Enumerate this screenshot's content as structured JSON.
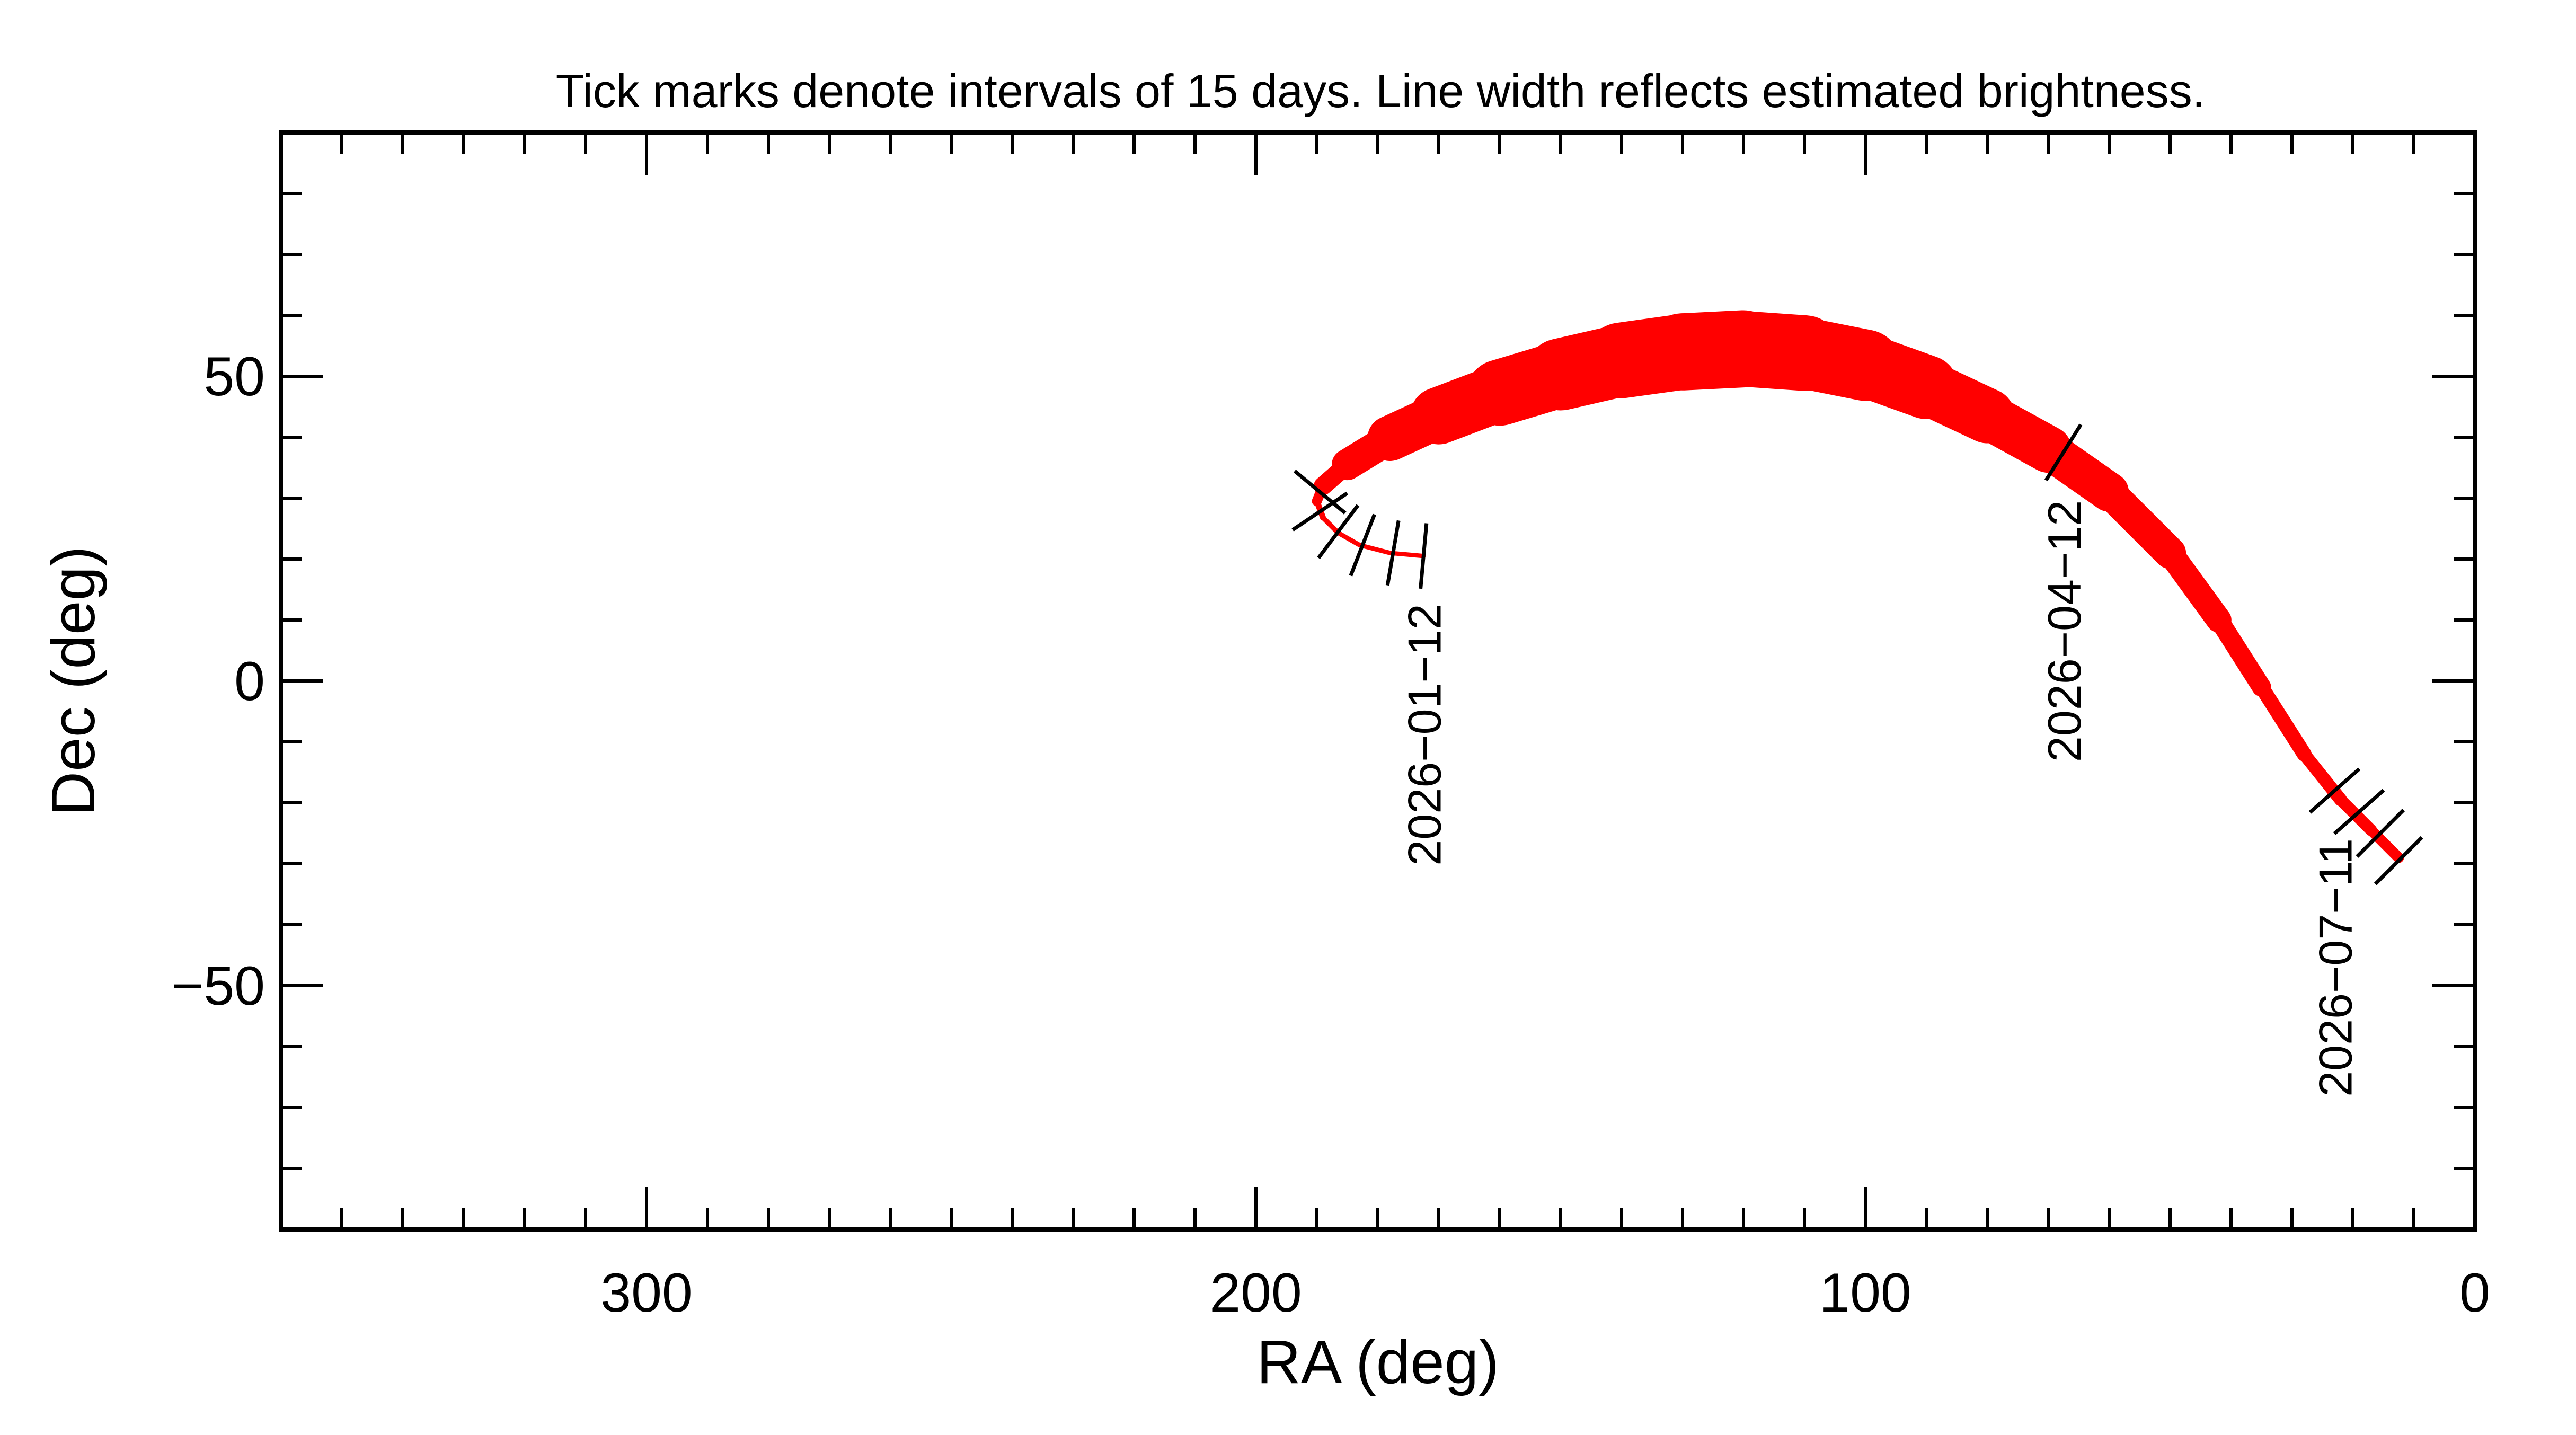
{
  "chart_data": {
    "type": "line",
    "title": "Tick marks denote intervals of 15 days.  Line width reflects estimated brightness.",
    "xlabel": "RA (deg)",
    "ylabel": "Dec (deg)",
    "xlim": [
      360,
      0
    ],
    "ylim": [
      -90,
      90
    ],
    "x_reversed": true,
    "xticks": [
      300,
      200,
      100,
      0
    ],
    "yticks": [
      50,
      0,
      -50
    ],
    "xtick_labels": [
      "300",
      "200",
      "100",
      "0"
    ],
    "ytick_labels": [
      "50",
      "0",
      "−50"
    ],
    "grid": false,
    "line_color": "#ff0000",
    "series": [
      {
        "points": [
          {
            "ra": 172.5,
            "dec": 20.5,
            "w": 0.3
          },
          {
            "ra": 178.0,
            "dec": 21.0,
            "w": 0.3
          },
          {
            "ra": 183.0,
            "dec": 22.3,
            "w": 0.3
          },
          {
            "ra": 186.5,
            "dec": 24.3,
            "w": 0.32
          },
          {
            "ra": 189.0,
            "dec": 26.8,
            "w": 0.35
          },
          {
            "ra": 190.0,
            "dec": 29.5,
            "w": 0.45
          },
          {
            "ra": 189.0,
            "dec": 32.0,
            "w": 0.9
          },
          {
            "ra": 185.0,
            "dec": 35.5,
            "w": 1.6
          },
          {
            "ra": 178.0,
            "dec": 39.8,
            "w": 2.6
          },
          {
            "ra": 170.0,
            "dec": 43.5,
            "w": 3.5
          },
          {
            "ra": 160.0,
            "dec": 47.3,
            "w": 4.2
          },
          {
            "ra": 150.0,
            "dec": 50.3,
            "w": 4.7
          },
          {
            "ra": 140.0,
            "dec": 52.6,
            "w": 5.0
          },
          {
            "ra": 130.0,
            "dec": 54.0,
            "w": 5.2
          },
          {
            "ra": 120.0,
            "dec": 54.5,
            "w": 5.2
          },
          {
            "ra": 110.0,
            "dec": 53.8,
            "w": 5.0
          },
          {
            "ra": 100.0,
            "dec": 51.8,
            "w": 4.6
          },
          {
            "ra": 90.0,
            "dec": 48.2,
            "w": 4.0
          },
          {
            "ra": 80.0,
            "dec": 43.5,
            "w": 3.4
          },
          {
            "ra": 70.0,
            "dec": 38.0,
            "w": 2.9
          },
          {
            "ra": 60.0,
            "dec": 31.0,
            "w": 2.4
          },
          {
            "ra": 50.0,
            "dec": 21.0,
            "w": 1.9
          },
          {
            "ra": 42.0,
            "dec": 10.0,
            "w": 1.5
          },
          {
            "ra": 35.0,
            "dec": -1.0,
            "w": 1.1
          },
          {
            "ra": 28.0,
            "dec": -12.0,
            "w": 0.9
          },
          {
            "ra": 22.0,
            "dec": -19.5,
            "w": 0.85
          },
          {
            "ra": 17.0,
            "dec": -24.5,
            "w": 0.75
          },
          {
            "ra": 12.5,
            "dec": -29.0,
            "w": 0.7
          }
        ]
      }
    ],
    "tick_marks": [
      {
        "ra": 172.5,
        "dec": 20.5
      },
      {
        "ra": 177.5,
        "dec": 21.0
      },
      {
        "ra": 182.5,
        "dec": 22.3
      },
      {
        "ra": 186.5,
        "dec": 24.5
      },
      {
        "ra": 189.5,
        "dec": 27.8
      },
      {
        "ra": 189.5,
        "dec": 31.0
      },
      {
        "ra": 67.5,
        "dec": 37.5
      },
      {
        "ra": 23.0,
        "dec": -18.0
      },
      {
        "ra": 19.0,
        "dec": -21.5
      },
      {
        "ra": 15.5,
        "dec": -25.0
      },
      {
        "ra": 12.5,
        "dec": -29.5
      }
    ],
    "annotations": [
      {
        "text": "2026−01−12",
        "ra": 172.5,
        "dec": 20.5
      },
      {
        "text": "2026−04−12",
        "ra": 67.5,
        "dec": 37.5
      },
      {
        "text": "2026−07−11",
        "ra": 23.0,
        "dec": -18.0
      }
    ]
  }
}
